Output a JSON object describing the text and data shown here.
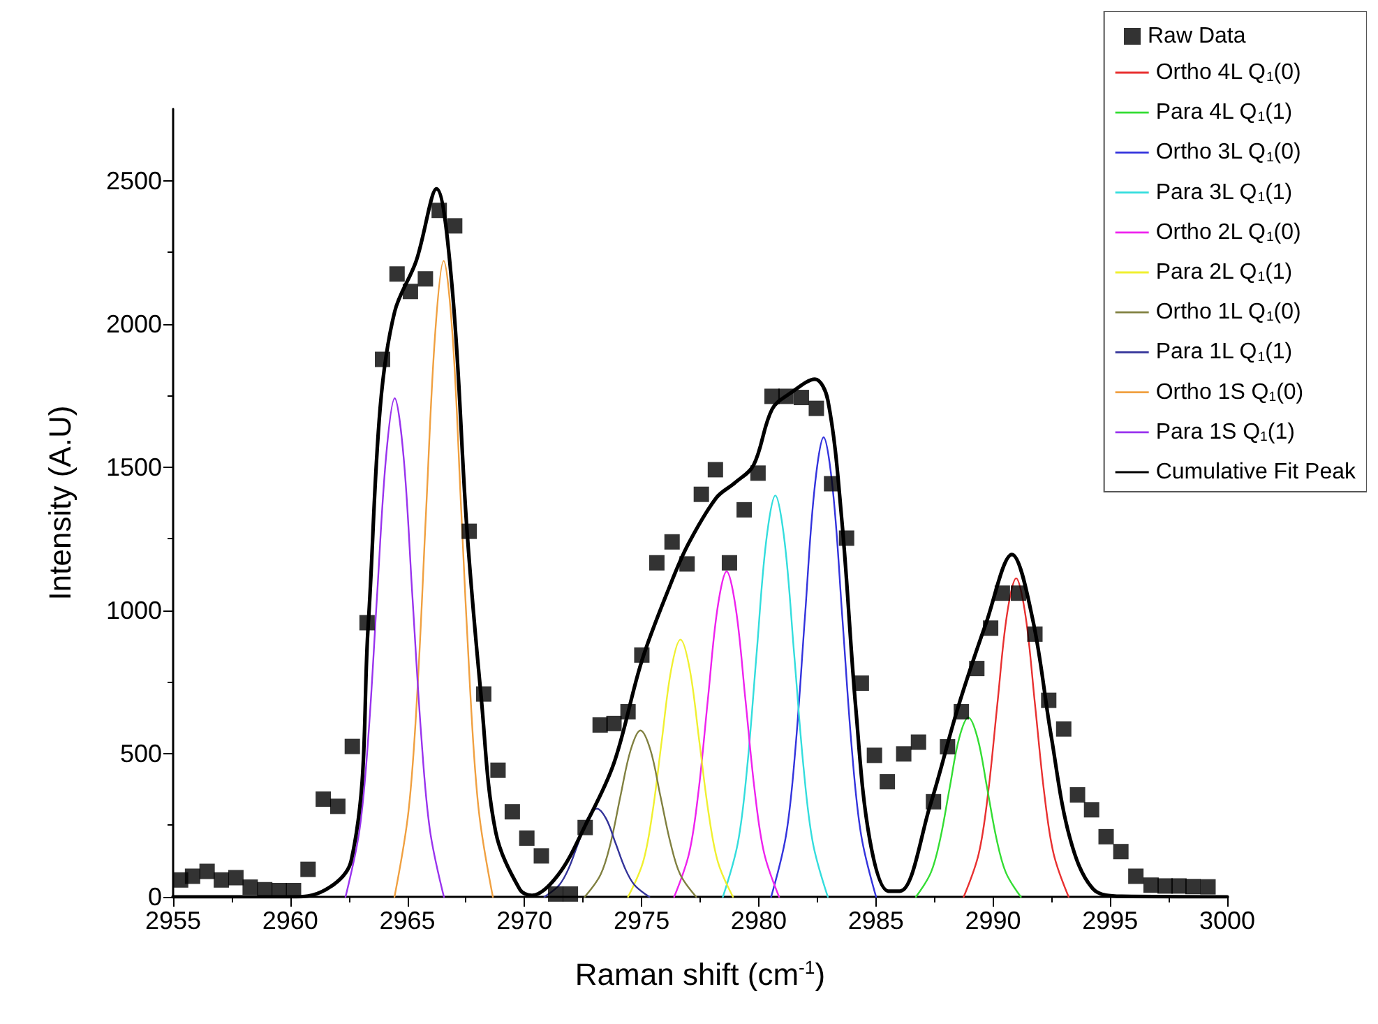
{
  "chart_data": {
    "type": "line",
    "xlabel": "Raman shift (cm$^{-1}$)",
    "ylabel": "Intensity (A.U)",
    "xlim": [
      2955,
      3000
    ],
    "xticks": [
      2955,
      2960,
      2965,
      2970,
      2975,
      2980,
      2985,
      2990,
      2995,
      3000
    ],
    "ylim": [
      0,
      2750
    ],
    "yticks": [
      0,
      500,
      1000,
      1500,
      2000,
      2500
    ],
    "grid": false,
    "legend": "top right",
    "line_style": "solid",
    "series": [
      {
        "name": "Raw Data",
        "type": "scatter",
        "marker": "square",
        "color": "#000000",
        "x": [
          2955.32,
          2955.83,
          2956.45,
          2957.06,
          2957.68,
          2958.29,
          2958.91,
          2959.53,
          2960.14,
          2960.76,
          2961.41,
          2962.03,
          2962.65,
          2963.28,
          2963.94,
          2964.56,
          2965.13,
          2965.77,
          2966.36,
          2967.02,
          2967.64,
          2968.26,
          2968.87,
          2969.48,
          2970.1,
          2970.72,
          2971.33,
          2971.96,
          2972.59,
          2973.23,
          2973.82,
          2974.42,
          2975.01,
          2975.65,
          2976.3,
          2976.94,
          2977.55,
          2978.15,
          2978.75,
          2979.38,
          2979.97,
          2980.57,
          2981.16,
          2981.82,
          2982.46,
          2983.11,
          2983.75,
          2984.38,
          2984.94,
          2985.49,
          2986.19,
          2986.82,
          2987.46,
          2988.06,
          2988.65,
          2989.31,
          2989.9,
          2990.4,
          2991.09,
          2991.79,
          2992.38,
          2993.02,
          2993.61,
          2994.21,
          2994.83,
          2995.46,
          2996.1,
          2996.75,
          2997.35,
          2997.94,
          2998.54,
          2999.18
        ],
        "values": [
          59,
          72,
          89,
          59,
          67,
          34,
          25,
          22,
          22,
          96,
          341,
          316,
          525,
          957,
          1876,
          2174,
          2113,
          2157,
          2396,
          2342,
          1276,
          708,
          442,
          297,
          205,
          143,
          10,
          10,
          242,
          600,
          605,
          646,
          844,
          1166,
          1239,
          1162,
          1405,
          1491,
          1166,
          1351,
          1479,
          1747,
          1747,
          1743,
          1705,
          1442,
          1252,
          746,
          494,
          402,
          499,
          540,
          332,
          524,
          646,
          797,
          938,
          1060,
          1060,
          917,
          686,
          586,
          356,
          304,
          210,
          158,
          72,
          41,
          38,
          38,
          36,
          35
        ]
      },
      {
        "name": "Ortho 4L Q$_{1}$(0)",
        "marker": "none",
        "color": "#e83030",
        "x": [
          2988.75,
          2989.39,
          2989.79,
          2990.19,
          2990.59,
          2990.99,
          2991.39,
          2991.79,
          2992.19,
          2992.59,
          2993.23
        ],
        "values": [
          0,
          150,
          361,
          675,
          981,
          1112,
          981,
          675,
          361,
          150,
          0
        ]
      },
      {
        "name": "Para 4L Q$_{1}$(1)",
        "marker": "none",
        "color": "#33dd33",
        "x": [
          2986.71,
          2987.35,
          2987.75,
          2988.15,
          2988.55,
          2988.95,
          2989.35,
          2989.75,
          2990.15,
          2990.55,
          2991.19
        ],
        "values": [
          0,
          85,
          203,
          380,
          552,
          626,
          552,
          380,
          203,
          85,
          0
        ]
      },
      {
        "name": "Ortho 3L Q$_{1}$(0)",
        "marker": "none",
        "color": "#3333dd",
        "x": [
          2980.53,
          2981.17,
          2981.57,
          2981.97,
          2982.37,
          2982.77,
          2983.17,
          2983.57,
          2983.97,
          2984.37,
          2985.01
        ],
        "values": [
          0,
          217,
          521,
          974,
          1415,
          1604,
          1415,
          974,
          521,
          217,
          0
        ]
      },
      {
        "name": "Para 3L Q$_{1}$(1)",
        "marker": "none",
        "color": "#33dddd",
        "x": [
          2978.47,
          2979.11,
          2979.51,
          2979.91,
          2980.31,
          2980.71,
          2981.11,
          2981.51,
          2981.91,
          2982.31,
          2982.95
        ],
        "values": [
          0,
          189,
          455,
          850,
          1236,
          1401,
          1236,
          850,
          455,
          189,
          0
        ]
      },
      {
        "name": "Ortho 2L Q$_{1}$(0)",
        "marker": "none",
        "color": "#ee22ee",
        "x": [
          2976.39,
          2977.03,
          2977.43,
          2977.83,
          2978.23,
          2978.63,
          2979.03,
          2979.43,
          2979.83,
          2980.23,
          2980.87
        ],
        "values": [
          0,
          153,
          369,
          690,
          1002,
          1136,
          1002,
          690,
          369,
          153,
          0
        ]
      },
      {
        "name": "Para 2L Q$_{1}$(1)",
        "marker": "none",
        "color": "#f0f030",
        "x": [
          2974.42,
          2975.06,
          2975.46,
          2975.86,
          2976.26,
          2976.66,
          2977.06,
          2977.46,
          2977.86,
          2978.26,
          2978.9
        ],
        "values": [
          0,
          121,
          292,
          545,
          792,
          898,
          792,
          545,
          292,
          121,
          0
        ]
      },
      {
        "name": "Ortho 1L Q$_{1}$(0)",
        "marker": "none",
        "color": "#808040",
        "x": [
          2972.57,
          2973.25,
          2973.68,
          2974.1,
          2974.53,
          2974.95,
          2975.38,
          2975.8,
          2976.23,
          2976.65,
          2977.33
        ],
        "values": [
          0,
          78,
          189,
          353,
          512,
          581,
          512,
          353,
          189,
          78,
          0
        ]
      },
      {
        "name": "Para 1L Q$_{1}$(1)",
        "marker": "none",
        "color": "#333399",
        "x": [
          2970.85,
          2971.49,
          2971.89,
          2972.29,
          2972.69,
          2973.09,
          2973.49,
          2973.89,
          2974.29,
          2974.69,
          2975.33
        ],
        "values": [
          0,
          42,
          100,
          187,
          272,
          308,
          272,
          187,
          100,
          42,
          0
        ]
      },
      {
        "name": "Ortho 1S Q$_{1}$(0)",
        "marker": "none",
        "color": "#f0a040",
        "x": [
          2964.45,
          2965.05,
          2965.43,
          2965.8,
          2966.18,
          2966.55,
          2966.93,
          2967.3,
          2967.68,
          2968.05,
          2968.65
        ],
        "values": [
          0,
          300,
          722,
          1348,
          1958,
          2220,
          1958,
          1348,
          722,
          300,
          0
        ]
      },
      {
        "name": "Para 1S Q$_{1}$(1)",
        "marker": "none",
        "color": "#9933ee",
        "x": [
          2962.36,
          2962.96,
          2963.34,
          2963.71,
          2964.09,
          2964.46,
          2964.84,
          2965.21,
          2965.59,
          2965.96,
          2966.56
        ],
        "values": [
          0,
          235,
          566,
          1056,
          1535,
          1740,
          1535,
          1056,
          566,
          235,
          0
        ]
      },
      {
        "name": "Cumulative Fit Peak",
        "marker": "none",
        "color": "#000000",
        "x": [
          2955,
          2960,
          2960.76,
          2962.6,
          2963.33,
          2963.84,
          2964.46,
          2965.38,
          2966.24,
          2966.91,
          2967.54,
          2968.15,
          2968.77,
          2969.8,
          2970.3,
          2971.44,
          2972.63,
          2973.82,
          2975.01,
          2976.2,
          2976.99,
          2978.19,
          2978.98,
          2979.78,
          2980.57,
          2981.37,
          2982.4,
          2982.95,
          2983.55,
          2984.14,
          2984.74,
          2985.54,
          2986.03,
          2987.32,
          2988.51,
          2989.7,
          2990.81,
          2991.69,
          2992.48,
          2993.28,
          2994.27,
          2995.5,
          3000
        ],
        "values": [
          0,
          0,
          3,
          126,
          950,
          1708,
          2043,
          2220,
          2471,
          2128,
          1286,
          698,
          227,
          26,
          5,
          77,
          255,
          467,
          824,
          1084,
          1231,
          1393,
          1445,
          1507,
          1702,
          1759,
          1807,
          1734,
          1312,
          662,
          200,
          20,
          20,
          320,
          662,
          954,
          1195,
          971,
          564,
          207,
          28,
          2,
          0
        ]
      }
    ]
  }
}
